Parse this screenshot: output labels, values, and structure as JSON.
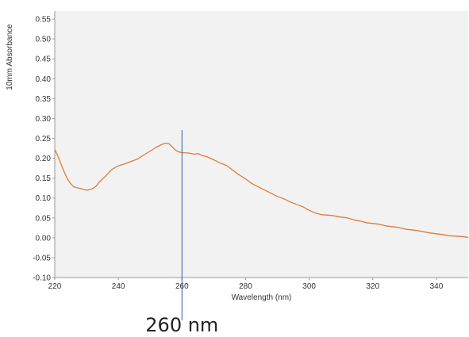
{
  "chart_data": {
    "type": "line",
    "title": "",
    "xlabel": "Wavelength (nm)",
    "ylabel": "10mm Absorbance",
    "xlim": [
      220,
      350
    ],
    "ylim": [
      -0.1,
      0.57
    ],
    "x_ticks": [
      220,
      240,
      260,
      280,
      300,
      320,
      340
    ],
    "x_tick_labels": [
      "220",
      "240",
      "260",
      "280",
      "300",
      "320",
      "340"
    ],
    "y_ticks": [
      -0.1,
      -0.05,
      0.0,
      0.05,
      0.1,
      0.15,
      0.2,
      0.25,
      0.3,
      0.35,
      0.4,
      0.45,
      0.5,
      0.55
    ],
    "y_tick_labels": [
      "-0.10",
      "-0.05",
      "0.00",
      "0.05",
      "0.10",
      "0.15",
      "0.20",
      "0.25",
      "0.30",
      "0.35",
      "0.40",
      "0.45",
      "0.50",
      "0.55"
    ],
    "grid": false,
    "plot_background": "#f2f2f2",
    "series": [
      {
        "color": "#e07b39",
        "x": [
          220,
          221,
          222,
          223,
          224,
          225,
          226,
          228,
          230,
          231,
          232,
          233,
          234,
          236,
          238,
          240,
          242,
          244,
          246,
          248,
          250,
          252,
          253,
          254,
          255,
          256,
          257,
          258,
          259,
          260,
          262,
          264,
          265,
          266,
          268,
          270,
          272,
          274,
          276,
          278,
          280,
          282,
          284,
          286,
          288,
          290,
          292,
          294,
          296,
          298,
          300,
          302,
          304,
          306,
          308,
          310,
          312,
          314,
          316,
          318,
          320,
          322,
          324,
          326,
          328,
          330,
          332,
          334,
          336,
          338,
          340,
          342,
          344,
          346,
          348,
          350
        ],
        "y": [
          0.222,
          0.205,
          0.185,
          0.165,
          0.148,
          0.136,
          0.128,
          0.124,
          0.12,
          0.121,
          0.124,
          0.13,
          0.14,
          0.155,
          0.172,
          0.181,
          0.186,
          0.192,
          0.198,
          0.208,
          0.218,
          0.228,
          0.232,
          0.236,
          0.238,
          0.236,
          0.228,
          0.22,
          0.216,
          0.214,
          0.213,
          0.21,
          0.212,
          0.208,
          0.203,
          0.196,
          0.188,
          0.182,
          0.17,
          0.158,
          0.148,
          0.136,
          0.128,
          0.12,
          0.112,
          0.104,
          0.098,
          0.09,
          0.084,
          0.078,
          0.069,
          0.062,
          0.058,
          0.057,
          0.055,
          0.052,
          0.05,
          0.045,
          0.042,
          0.038,
          0.036,
          0.034,
          0.03,
          0.028,
          0.026,
          0.022,
          0.02,
          0.018,
          0.015,
          0.012,
          0.01,
          0.008,
          0.005,
          0.004,
          0.003,
          0.001
        ]
      }
    ],
    "marker_line": {
      "x": 260,
      "color": "#2e5fa3",
      "label": "260 nm"
    }
  }
}
